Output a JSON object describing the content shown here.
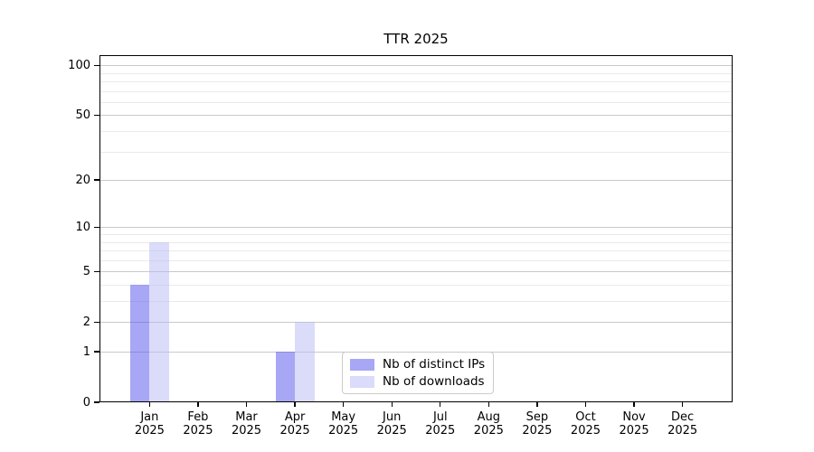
{
  "chart_data": {
    "type": "bar",
    "title": "TTR 2025",
    "categories": [
      "Jan",
      "Feb",
      "Mar",
      "Apr",
      "May",
      "Jun",
      "Jul",
      "Aug",
      "Sep",
      "Oct",
      "Nov",
      "Dec"
    ],
    "year_label": "2025",
    "series": [
      {
        "name": "Nb of distinct IPs",
        "color": "rgba(79,79,238,0.5)",
        "values": [
          4,
          0,
          0,
          1,
          0,
          0,
          0,
          0,
          0,
          0,
          0,
          0
        ]
      },
      {
        "name": "Nb of downloads",
        "color": "rgba(183,183,246,0.5)",
        "values": [
          8,
          0,
          0,
          2,
          0,
          0,
          0,
          0,
          0,
          0,
          0,
          0
        ]
      }
    ],
    "yscale": "log1p",
    "yticks": [
      0,
      1,
      2,
      5,
      10,
      20,
      50,
      100
    ],
    "minor_yticks": [
      3,
      4,
      6,
      7,
      8,
      9,
      30,
      40,
      60,
      70,
      80,
      90
    ],
    "ylim": [
      0,
      115
    ],
    "grid": "on",
    "legend_position": "lower center",
    "colors": {
      "major_grid": "#c9c9c9",
      "minor_grid": "#eaeaea",
      "spine": "#000000",
      "text": "#000000",
      "background": "#ffffff"
    }
  }
}
